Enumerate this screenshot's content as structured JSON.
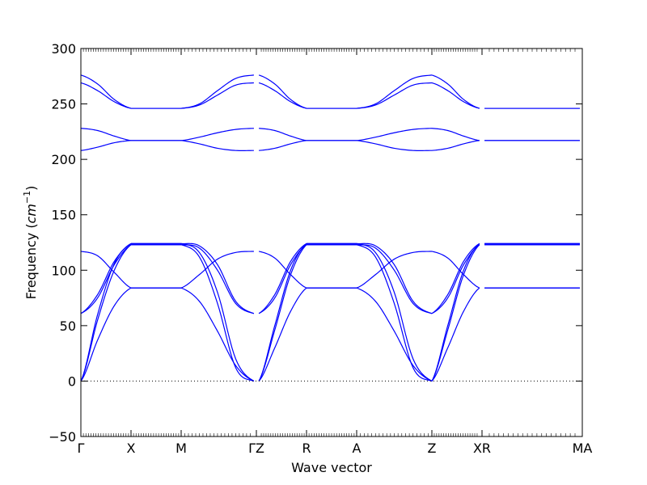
{
  "chart_data": {
    "type": "line",
    "title": "",
    "xlabel": "Wave vector",
    "ylabel": {
      "prefix": "Frequency (",
      "unit": "cm",
      "exponent": "−1",
      "suffix": ")"
    },
    "ylim": [
      -50,
      300
    ],
    "yticks": [
      -50,
      0,
      50,
      100,
      150,
      200,
      250,
      300
    ],
    "ytick_labels": [
      "−50",
      "0",
      "50",
      "100",
      "150",
      "200",
      "250",
      "300"
    ],
    "xlim": [
      0,
      10
    ],
    "high_symmetry_points": [
      {
        "label": "Γ",
        "x": 0.0
      },
      {
        "label": "X",
        "x": 1.0
      },
      {
        "label": "M",
        "x": 2.0
      },
      {
        "label": "ΓZ",
        "x": 3.5
      },
      {
        "label": "R",
        "x": 4.5
      },
      {
        "label": "A",
        "x": 5.5
      },
      {
        "label": "Z",
        "x": 7.0
      },
      {
        "label": "XR",
        "x": 8.0
      },
      {
        "label": "MA",
        "x": 10.0
      }
    ],
    "zero_line": {
      "y": 0,
      "style": "dotted"
    },
    "grid": false,
    "series_color": "#0000ff",
    "segments": [
      {
        "from": "Γ",
        "to": "X",
        "x0": 0.0,
        "x1": 1.0,
        "bands": [
          {
            "y": [
              0,
              60,
              106,
              124
            ]
          },
          {
            "y": [
              0,
              55,
              100,
              123
            ]
          },
          {
            "y": [
              0,
              37,
              68,
              84
            ]
          },
          {
            "y": [
              117,
              113,
              98,
              84
            ]
          },
          {
            "y": [
              61,
              78,
              108,
              124
            ]
          },
          {
            "y": [
              61,
              75,
              105,
              123
            ]
          },
          {
            "y": [
              208,
              211,
              215,
              217
            ]
          },
          {
            "y": [
              228,
              226,
              221,
              217
            ]
          },
          {
            "y": [
              269,
              262,
              252,
              246
            ]
          },
          {
            "y": [
              276,
              268,
              254,
              246
            ]
          }
        ]
      },
      {
        "from": "X",
        "to": "M",
        "x0": 1.0,
        "x1": 2.0,
        "bands": [
          {
            "y": [
              124,
              124,
              124,
              124
            ]
          },
          {
            "y": [
              123,
              123,
              123,
              123
            ]
          },
          {
            "y": [
              84,
              84,
              84,
              84
            ]
          },
          {
            "y": [
              84,
              84,
              84,
              84
            ]
          },
          {
            "y": [
              124,
              124,
              124,
              124
            ]
          },
          {
            "y": [
              123,
              123,
              123,
              123
            ]
          },
          {
            "y": [
              217,
              217,
              217,
              217
            ]
          },
          {
            "y": [
              217,
              217,
              217,
              217
            ]
          },
          {
            "y": [
              246,
              246,
              246,
              246
            ]
          },
          {
            "y": [
              246,
              246,
              246,
              246
            ]
          }
        ]
      },
      {
        "from": "M",
        "to": "Γ",
        "x0": 2.0,
        "x1": 3.45,
        "bands": [
          {
            "y": [
              124,
              116,
              80,
              20,
              0
            ]
          },
          {
            "y": [
              123,
              112,
              70,
              12,
              0
            ]
          },
          {
            "y": [
              84,
              72,
              45,
              14,
              0
            ]
          },
          {
            "y": [
              84,
              96,
              110,
              116,
              117
            ]
          },
          {
            "y": [
              124,
              122,
              105,
              72,
              61
            ]
          },
          {
            "y": [
              123,
              120,
              100,
              70,
              61
            ]
          },
          {
            "y": [
              217,
              220,
              224,
              227,
              228
            ]
          },
          {
            "y": [
              217,
              214,
              210,
              208,
              208
            ]
          },
          {
            "y": [
              246,
              250,
              262,
              273,
              276
            ]
          },
          {
            "y": [
              246,
              249,
              258,
              267,
              269
            ]
          }
        ]
      },
      {
        "from": "Z",
        "to": "R",
        "x0": 3.55,
        "x1": 4.5,
        "bands": [
          {
            "y": [
              0,
              50,
              100,
              124
            ]
          },
          {
            "y": [
              0,
              46,
              96,
              123
            ]
          },
          {
            "y": [
              0,
              30,
              63,
              84
            ]
          },
          {
            "y": [
              117,
              111,
              96,
              84
            ]
          },
          {
            "y": [
              61,
              78,
              108,
              124
            ]
          },
          {
            "y": [
              61,
              75,
              105,
              123
            ]
          },
          {
            "y": [
              208,
              210,
              214,
              217
            ]
          },
          {
            "y": [
              228,
              226,
              221,
              217
            ]
          },
          {
            "y": [
              269,
              262,
              252,
              246
            ]
          },
          {
            "y": [
              276,
              268,
              254,
              246
            ]
          }
        ]
      },
      {
        "from": "R",
        "to": "A",
        "x0": 4.5,
        "x1": 5.5,
        "bands": [
          {
            "y": [
              124,
              124,
              124,
              124
            ]
          },
          {
            "y": [
              123,
              123,
              123,
              123
            ]
          },
          {
            "y": [
              84,
              84,
              84,
              84
            ]
          },
          {
            "y": [
              84,
              84,
              84,
              84
            ]
          },
          {
            "y": [
              124,
              124,
              124,
              124
            ]
          },
          {
            "y": [
              123,
              123,
              123,
              123
            ]
          },
          {
            "y": [
              217,
              217,
              217,
              217
            ]
          },
          {
            "y": [
              217,
              217,
              217,
              217
            ]
          },
          {
            "y": [
              246,
              246,
              246,
              246
            ]
          },
          {
            "y": [
              246,
              246,
              246,
              246
            ]
          }
        ]
      },
      {
        "from": "A",
        "to": "Z",
        "x0": 5.5,
        "x1": 7.0,
        "bands": [
          {
            "y": [
              124,
              116,
              80,
              20,
              0
            ]
          },
          {
            "y": [
              123,
              112,
              70,
              12,
              0
            ]
          },
          {
            "y": [
              84,
              72,
              45,
              14,
              0
            ]
          },
          {
            "y": [
              84,
              96,
              110,
              116,
              117
            ]
          },
          {
            "y": [
              124,
              122,
              105,
              72,
              61
            ]
          },
          {
            "y": [
              123,
              120,
              100,
              70,
              61
            ]
          },
          {
            "y": [
              217,
              220,
              224,
              227,
              228
            ]
          },
          {
            "y": [
              217,
              214,
              210,
              208,
              208
            ]
          },
          {
            "y": [
              246,
              250,
              262,
              273,
              276
            ]
          },
          {
            "y": [
              246,
              249,
              258,
              267,
              269
            ]
          }
        ]
      },
      {
        "from": "Z",
        "to": "X",
        "x0": 7.0,
        "x1": 7.95,
        "bands": [
          {
            "y": [
              0,
              50,
              100,
              124
            ]
          },
          {
            "y": [
              0,
              46,
              96,
              123
            ]
          },
          {
            "y": [
              0,
              30,
              63,
              84
            ]
          },
          {
            "y": [
              117,
              111,
              96,
              84
            ]
          },
          {
            "y": [
              61,
              78,
              108,
              124
            ]
          },
          {
            "y": [
              61,
              75,
              105,
              123
            ]
          },
          {
            "y": [
              208,
              210,
              214,
              217
            ]
          },
          {
            "y": [
              228,
              226,
              221,
              217
            ]
          },
          {
            "y": [
              269,
              262,
              252,
              246
            ]
          },
          {
            "y": [
              276,
              268,
              254,
              246
            ]
          }
        ]
      },
      {
        "from": "R",
        "to": "M",
        "x0": 8.05,
        "x1": 9.95,
        "bands": [
          {
            "y": [
              124,
              124
            ]
          },
          {
            "y": [
              123,
              123
            ]
          },
          {
            "y": [
              84,
              84
            ]
          },
          {
            "y": [
              84,
              84
            ]
          },
          {
            "y": [
              124,
              124
            ]
          },
          {
            "y": [
              123,
              123
            ]
          },
          {
            "y": [
              217,
              217
            ]
          },
          {
            "y": [
              217,
              217
            ]
          },
          {
            "y": [
              246,
              246
            ]
          },
          {
            "y": [
              246,
              246
            ]
          }
        ]
      }
    ]
  }
}
